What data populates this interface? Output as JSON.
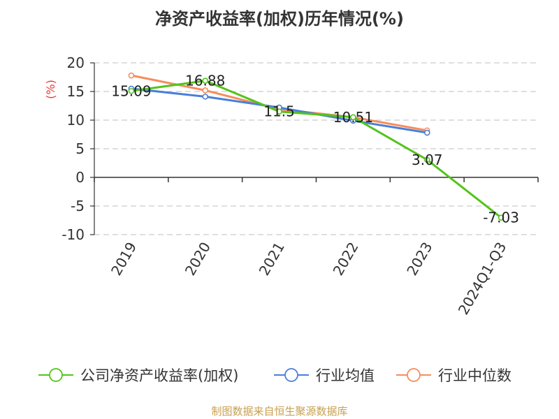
{
  "chart_data": {
    "type": "line",
    "title": "净资产收益率(加权)历年情况(%)",
    "ylabel": "(%)",
    "xlabel": "",
    "categories": [
      "2019",
      "2020",
      "2021",
      "2022",
      "2023",
      "2024Q1-Q3"
    ],
    "ylim": [
      -10,
      20
    ],
    "yticks": [
      20,
      15,
      10,
      5,
      0,
      -5,
      -10
    ],
    "grid": true,
    "legend_position": "bottom",
    "series": [
      {
        "name": "公司净资产收益率(加权)",
        "color": "#52c41a",
        "values": [
          15.09,
          16.88,
          11.5,
          10.51,
          3.07,
          -7.03
        ],
        "labels": [
          "15.09",
          "16.88",
          "11.5",
          "10.51",
          "3.07",
          "-7.03"
        ]
      },
      {
        "name": "行业均值",
        "color": "#4a7fd9",
        "values": [
          15.5,
          14.1,
          12.2,
          9.9,
          7.8,
          null
        ]
      },
      {
        "name": "行业中位数",
        "color": "#f58d5c",
        "values": [
          17.8,
          15.2,
          11.9,
          10.5,
          8.2,
          null
        ]
      }
    ],
    "source": "制图数据来自恒生聚源数据库"
  }
}
